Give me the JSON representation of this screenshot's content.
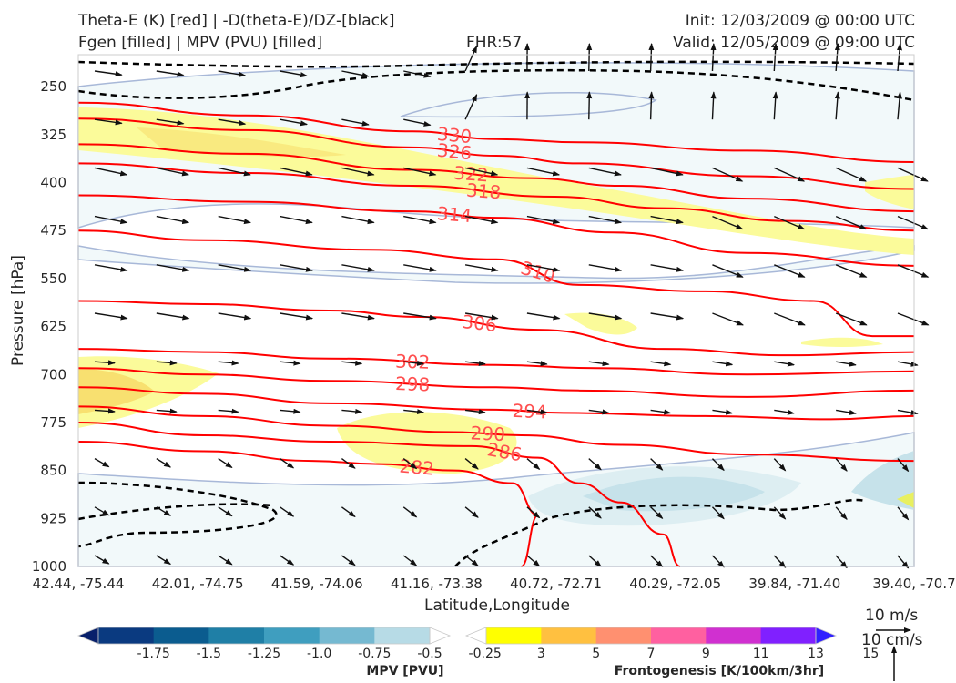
{
  "header": {
    "title_line1": "Theta-E (K) [red] | -D(theta-E)/DZ-[black]",
    "title_line2": "Fgen [filled] | MPV (PVU) [filled]",
    "fhr": "FHR:57",
    "init": "Init: 12/03/2009 @ 00:00 UTC",
    "valid": "Valid: 12/05/2009 @ 09:00 UTC"
  },
  "chart_data": {
    "type": "cross-section",
    "xlabel": "Latitude,Longitude",
    "ylabel": "Pressure [hPa]",
    "x_ticks": [
      "42.44, -75.44",
      "42.01, -74.75",
      "41.59, -74.06",
      "41.16, -73.38",
      "40.72, -72.71",
      "40.29, -72.05",
      "39.84, -71.40",
      "39.40, -70.7"
    ],
    "y_ticks": [
      250,
      325,
      400,
      475,
      550,
      625,
      700,
      775,
      850,
      925,
      1000
    ],
    "ylim": [
      1000,
      200
    ],
    "y_reversed": true,
    "theta_e_contours": [
      {
        "value": "330",
        "points": [
          [
            0,
            275
          ],
          [
            0.2,
            295
          ],
          [
            0.4,
            320
          ],
          [
            0.5,
            332
          ],
          [
            0.6,
            337
          ],
          [
            0.8,
            350
          ],
          [
            1,
            368
          ]
        ]
      },
      {
        "value": "326",
        "points": [
          [
            0,
            300
          ],
          [
            0.2,
            318
          ],
          [
            0.4,
            345
          ],
          [
            0.5,
            358
          ],
          [
            0.6,
            370
          ],
          [
            0.8,
            390
          ],
          [
            1,
            410
          ]
        ]
      },
      {
        "value": "322",
        "points": [
          [
            0,
            340
          ],
          [
            0.2,
            355
          ],
          [
            0.4,
            380
          ],
          [
            0.54,
            393
          ],
          [
            0.65,
            405
          ],
          [
            0.8,
            425
          ],
          [
            1,
            445
          ]
        ]
      },
      {
        "value": "318",
        "points": [
          [
            0,
            370
          ],
          [
            0.2,
            385
          ],
          [
            0.4,
            405
          ],
          [
            0.57,
            422
          ],
          [
            0.7,
            440
          ],
          [
            0.85,
            460
          ],
          [
            1,
            475
          ]
        ]
      },
      {
        "value": "314",
        "points": [
          [
            0,
            420
          ],
          [
            0.2,
            430
          ],
          [
            0.4,
            445
          ],
          [
            0.5,
            455
          ],
          [
            0.64,
            478
          ],
          [
            0.8,
            510
          ],
          [
            1,
            530
          ]
        ]
      },
      {
        "value": "310",
        "points": [
          [
            0,
            475
          ],
          [
            0.15,
            490
          ],
          [
            0.35,
            505
          ],
          [
            0.5,
            520
          ],
          [
            0.6,
            560
          ],
          [
            0.75,
            570
          ],
          [
            0.88,
            585
          ],
          [
            0.95,
            640
          ],
          [
            1,
            640
          ]
        ]
      },
      {
        "value": "306",
        "points": [
          [
            0,
            585
          ],
          [
            0.15,
            590
          ],
          [
            0.3,
            600
          ],
          [
            0.41,
            610
          ],
          [
            0.55,
            630
          ],
          [
            0.7,
            660
          ],
          [
            0.85,
            670
          ],
          [
            1,
            665
          ]
        ]
      },
      {
        "value": "302",
        "points": [
          [
            0,
            660
          ],
          [
            0.15,
            665
          ],
          [
            0.3,
            675
          ],
          [
            0.5,
            685
          ],
          [
            0.62,
            690
          ],
          [
            0.8,
            700
          ],
          [
            1,
            695
          ]
        ]
      },
      {
        "value": "298",
        "points": [
          [
            0,
            690
          ],
          [
            0.15,
            700
          ],
          [
            0.3,
            710
          ],
          [
            0.5,
            720
          ],
          [
            0.6,
            725
          ],
          [
            0.8,
            735
          ],
          [
            1,
            725
          ]
        ]
      },
      {
        "value": "294",
        "points": [
          [
            0,
            720
          ],
          [
            0.15,
            730
          ],
          [
            0.3,
            745
          ],
          [
            0.5,
            755
          ],
          [
            0.58,
            760
          ],
          [
            0.75,
            765
          ],
          [
            0.9,
            770
          ],
          [
            1,
            765
          ]
        ]
      },
      {
        "value": "290",
        "points": [
          [
            0,
            750
          ],
          [
            0.15,
            765
          ],
          [
            0.3,
            780
          ],
          [
            0.45,
            790
          ],
          [
            0.53,
            795
          ],
          [
            0.65,
            810
          ],
          [
            0.8,
            825
          ],
          [
            1,
            835
          ]
        ]
      },
      {
        "value": "286",
        "points": [
          [
            0,
            775
          ],
          [
            0.15,
            795
          ],
          [
            0.3,
            805
          ],
          [
            0.47,
            812
          ],
          [
            0.55,
            830
          ],
          [
            0.6,
            870
          ],
          [
            0.65,
            900
          ],
          [
            0.7,
            950
          ],
          [
            0.72,
            1000
          ]
        ]
      },
      {
        "value": "282",
        "points": [
          [
            0,
            805
          ],
          [
            0.15,
            820
          ],
          [
            0.28,
            835
          ],
          [
            0.36,
            840
          ],
          [
            0.45,
            850
          ],
          [
            0.52,
            870
          ],
          [
            0.55,
            920
          ],
          [
            0.53,
            1000
          ]
        ]
      }
    ],
    "vector_reference": {
      "label1": "10 m/s",
      "label2": "10 cm/s"
    },
    "mpv_colorbar": {
      "title": "MPV [PVU]",
      "ticks": [
        "-1.75",
        "-1.5",
        "-1.25",
        "-1.0",
        "-0.75",
        "-0.5",
        "-0.25"
      ],
      "colors": [
        "#08206b",
        "#0a3a80",
        "#0b5c8f",
        "#1f7fa6",
        "#3f9ebf",
        "#75b9d1",
        "#b7dbe6",
        "#ffffff"
      ]
    },
    "fgen_colorbar": {
      "title": "Frontogenesis [K/100km/3hr]",
      "ticks": [
        "3",
        "5",
        "7",
        "9",
        "11",
        "13",
        "15"
      ],
      "colors": [
        "#ffffff",
        "#ffff00",
        "#ffc040",
        "#ff9070",
        "#ff60a0",
        "#d030d0",
        "#8020ff",
        "#3020ff"
      ]
    }
  }
}
